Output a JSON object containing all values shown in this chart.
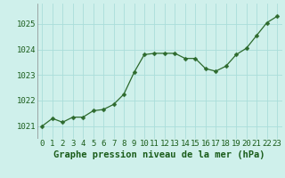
{
  "hours": [
    0,
    1,
    2,
    3,
    4,
    5,
    6,
    7,
    8,
    9,
    10,
    11,
    12,
    13,
    14,
    15,
    16,
    17,
    18,
    19,
    20,
    21,
    22,
    23
  ],
  "pressure": [
    1021.0,
    1021.3,
    1021.15,
    1021.35,
    1021.35,
    1021.6,
    1021.65,
    1021.85,
    1022.25,
    1023.1,
    1023.8,
    1023.85,
    1023.85,
    1023.85,
    1023.65,
    1023.65,
    1023.25,
    1023.15,
    1023.35,
    1023.8,
    1024.05,
    1024.55,
    1025.05,
    1025.3
  ],
  "line_color": "#2d6a2d",
  "marker": "D",
  "marker_size": 2.5,
  "bg_color": "#cff0eb",
  "grid_color": "#aaddda",
  "xlabel": "Graphe pression niveau de la mer (hPa)",
  "xlabel_fontsize": 7.5,
  "ytick_labels": [
    "1021",
    "1022",
    "1023",
    "1024",
    "1025"
  ],
  "ytick_values": [
    1021,
    1022,
    1023,
    1024,
    1025
  ],
  "ylim": [
    1020.5,
    1025.8
  ],
  "xlim": [
    -0.5,
    23.5
  ],
  "tick_fontsize": 6.5
}
